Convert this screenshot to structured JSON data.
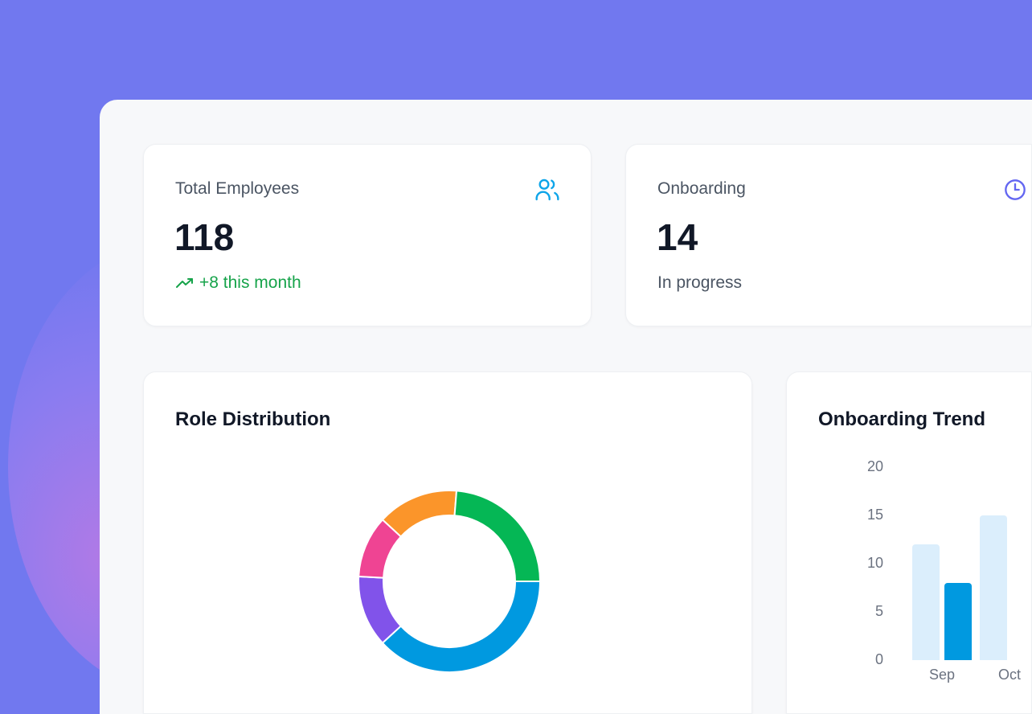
{
  "stats": [
    {
      "label": "Total Employees",
      "value": "118",
      "sub": "+8 this month",
      "icon": "users-icon",
      "trend": "up"
    },
    {
      "label": "Onboarding",
      "value": "14",
      "sub": "In progress",
      "icon": "clock-icon"
    }
  ],
  "colors": {
    "accent": "#0ea5e9",
    "green": "#16a34a",
    "indigo": "#6366f1"
  },
  "chart_data": [
    {
      "type": "pie",
      "title": "Role Distribution",
      "donut": true,
      "values": [
        45,
        15,
        13,
        17,
        28
      ],
      "colors": [
        "#0099e0",
        "#8153ea",
        "#ef4493",
        "#fb952a",
        "#05b755"
      ]
    },
    {
      "type": "bar",
      "title": "Onboarding Trend",
      "categories": [
        "Sep",
        "Oct"
      ],
      "series": [
        {
          "values": [
            12,
            15
          ],
          "color": "#dbeefc"
        },
        {
          "values": [
            8,
            null
          ],
          "color": "#0099e0"
        }
      ],
      "yticks": [
        "0",
        "5",
        "10",
        "15",
        "20"
      ],
      "ylim": [
        0,
        20
      ]
    }
  ]
}
